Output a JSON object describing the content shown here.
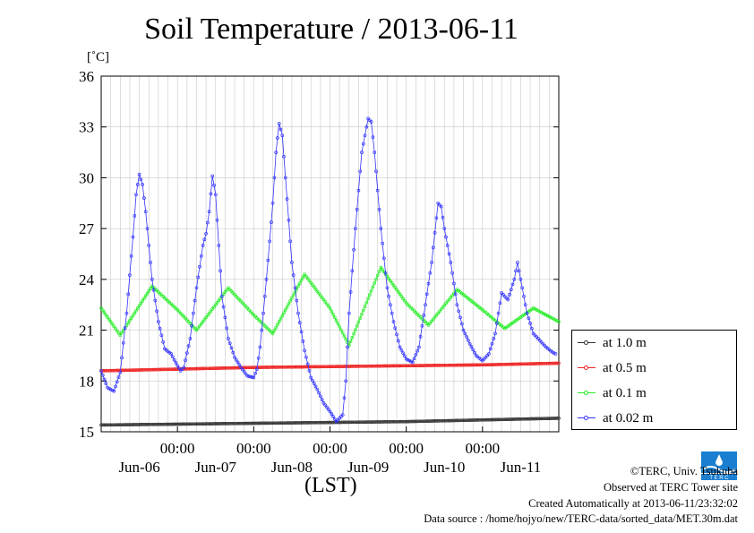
{
  "title": "Soil Temperature / 2013-06-11",
  "y_unit": "[˚C]",
  "x_unit": "(LST)",
  "credits": {
    "copyright": "©TERC, Univ. Tsukuba",
    "observed": "Observed at TERC Tower site",
    "created": "Created Automatically at 2013-06-11/23:32:02",
    "source": "Data source : /home/hojyo/new/TERC-data/sorted_data/MET.30m.dat"
  },
  "logo_icon": "terc-logo-icon",
  "chart_data": {
    "type": "line",
    "title": "Soil Temperature / 2013-06-11",
    "ylabel": "[˚C]",
    "xlabel": "(LST)",
    "ylim": [
      15,
      36
    ],
    "yticks": [
      15,
      18,
      21,
      24,
      27,
      30,
      33,
      36
    ],
    "xlim_hours": [
      0,
      144
    ],
    "xticks": [
      {
        "hour": 24,
        "time": "00:00",
        "date": "Jun-06"
      },
      {
        "hour": 48,
        "time": "00:00",
        "date": "Jun-07"
      },
      {
        "hour": 72,
        "time": "00:00",
        "date": "Jun-08"
      },
      {
        "hour": 96,
        "time": "00:00",
        "date": "Jun-09"
      },
      {
        "hour": 120,
        "time": "00:00",
        "date": "Jun-10"
      },
      {
        "hour": 144,
        "time": "",
        "date": "Jun-11"
      }
    ],
    "x_unit_note": "hours since Jun-05 00:00 LST",
    "grid": true,
    "legend_position": "right",
    "series": [
      {
        "name": "at 1.0 m",
        "color": "#333333",
        "points": [
          [
            0,
            15.4
          ],
          [
            24,
            15.45
          ],
          [
            48,
            15.5
          ],
          [
            72,
            15.55
          ],
          [
            96,
            15.6
          ],
          [
            120,
            15.7
          ],
          [
            144,
            15.8
          ]
        ]
      },
      {
        "name": "at 0.5 m",
        "color": "#ee2222",
        "points": [
          [
            0,
            18.6
          ],
          [
            24,
            18.7
          ],
          [
            48,
            18.8
          ],
          [
            72,
            18.85
          ],
          [
            96,
            18.9
          ],
          [
            120,
            18.95
          ],
          [
            144,
            19.05
          ]
        ]
      },
      {
        "name": "at 0.1 m",
        "color": "#22ee22",
        "points": [
          [
            0,
            22.3
          ],
          [
            6,
            20.7
          ],
          [
            16,
            23.6
          ],
          [
            24,
            22.2
          ],
          [
            30,
            21.0
          ],
          [
            40,
            23.5
          ],
          [
            48,
            21.9
          ],
          [
            54,
            20.8
          ],
          [
            64,
            24.3
          ],
          [
            72,
            22.3
          ],
          [
            78,
            20.1
          ],
          [
            88,
            24.7
          ],
          [
            96,
            22.6
          ],
          [
            103,
            21.3
          ],
          [
            112,
            23.4
          ],
          [
            120,
            22.2
          ],
          [
            127,
            21.1
          ],
          [
            136,
            22.3
          ],
          [
            144,
            21.5
          ]
        ]
      },
      {
        "name": "at 0.02 m",
        "color": "#3333ff",
        "points": [
          [
            0,
            18.6
          ],
          [
            2,
            17.6
          ],
          [
            4,
            17.4
          ],
          [
            6,
            18.5
          ],
          [
            8,
            22.0
          ],
          [
            10,
            26.5
          ],
          [
            11,
            29.0
          ],
          [
            12,
            30.2
          ],
          [
            13,
            29.6
          ],
          [
            14,
            28.0
          ],
          [
            16,
            24.0
          ],
          [
            18,
            21.5
          ],
          [
            20,
            19.9
          ],
          [
            22,
            19.6
          ],
          [
            24,
            18.9
          ],
          [
            25,
            18.6
          ],
          [
            26,
            18.8
          ],
          [
            28,
            20.5
          ],
          [
            30,
            23.5
          ],
          [
            32,
            26.0
          ],
          [
            33,
            26.7
          ],
          [
            34,
            28.0
          ],
          [
            35,
            30.1
          ],
          [
            36,
            29.0
          ],
          [
            38,
            23.0
          ],
          [
            40,
            20.5
          ],
          [
            42,
            19.4
          ],
          [
            44,
            18.8
          ],
          [
            46,
            18.3
          ],
          [
            48,
            18.2
          ],
          [
            49,
            18.7
          ],
          [
            50,
            20.0
          ],
          [
            52,
            24.0
          ],
          [
            54,
            28.5
          ],
          [
            55,
            31.5
          ],
          [
            56,
            33.2
          ],
          [
            57,
            32.5
          ],
          [
            58,
            30.0
          ],
          [
            60,
            25.0
          ],
          [
            62,
            22.0
          ],
          [
            64,
            19.8
          ],
          [
            66,
            18.2
          ],
          [
            68,
            17.5
          ],
          [
            70,
            16.7
          ],
          [
            72,
            16.2
          ],
          [
            74,
            15.6
          ],
          [
            76,
            16.0
          ],
          [
            77,
            18.0
          ],
          [
            78,
            22.0
          ],
          [
            80,
            27.0
          ],
          [
            82,
            31.5
          ],
          [
            84,
            33.5
          ],
          [
            85,
            33.3
          ],
          [
            86,
            31.5
          ],
          [
            88,
            27.0
          ],
          [
            90,
            23.5
          ],
          [
            92,
            21.5
          ],
          [
            94,
            20.0
          ],
          [
            96,
            19.3
          ],
          [
            98,
            19.1
          ],
          [
            100,
            20.0
          ],
          [
            102,
            22.5
          ],
          [
            104,
            25.0
          ],
          [
            106,
            28.5
          ],
          [
            107,
            28.3
          ],
          [
            108,
            27.0
          ],
          [
            110,
            25.0
          ],
          [
            112,
            22.5
          ],
          [
            114,
            21.0
          ],
          [
            116,
            20.2
          ],
          [
            118,
            19.5
          ],
          [
            120,
            19.2
          ],
          [
            122,
            19.6
          ],
          [
            124,
            20.8
          ],
          [
            126,
            23.2
          ],
          [
            128,
            22.8
          ],
          [
            130,
            24.0
          ],
          [
            131,
            25.0
          ],
          [
            132,
            24.0
          ],
          [
            134,
            22.0
          ],
          [
            136,
            20.8
          ],
          [
            138,
            20.4
          ],
          [
            140,
            20.0
          ],
          [
            142,
            19.7
          ],
          [
            143,
            19.6
          ]
        ]
      }
    ]
  }
}
